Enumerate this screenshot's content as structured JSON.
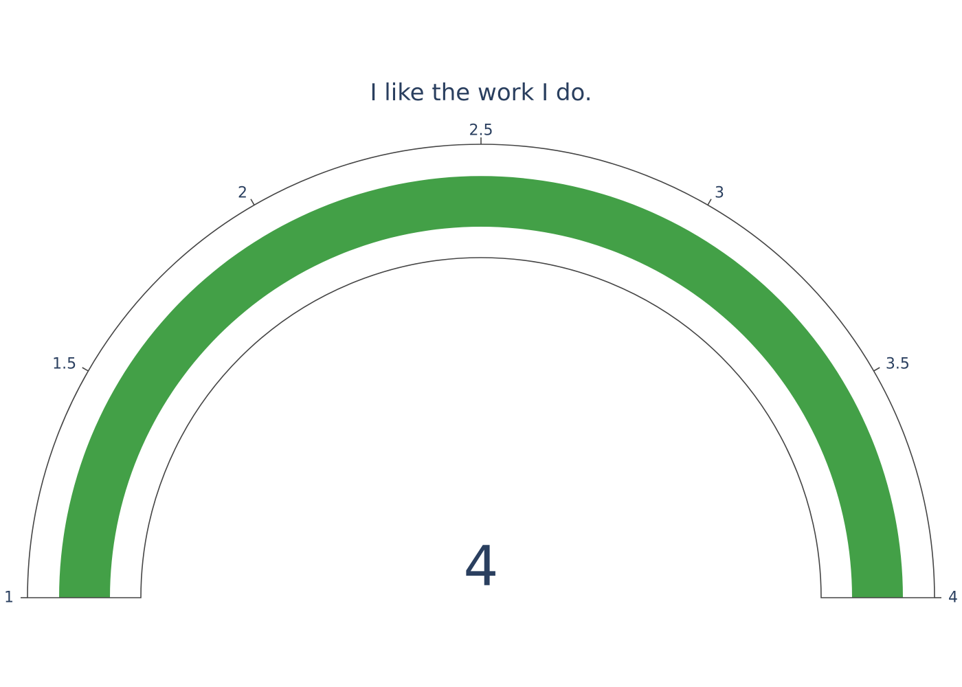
{
  "chart_data": {
    "type": "gauge",
    "title": "I like the work I do.",
    "value": 4,
    "value_label": "4",
    "range": [
      1,
      4
    ],
    "ticks": [
      1,
      1.5,
      2,
      2.5,
      3,
      3.5,
      4
    ],
    "tick_labels": [
      "1",
      "1.5",
      "2",
      "2.5",
      "3",
      "3.5",
      "4"
    ],
    "bar_color": "#43a047",
    "outline_color": "#444444",
    "text_color": "#2a3f5f"
  }
}
